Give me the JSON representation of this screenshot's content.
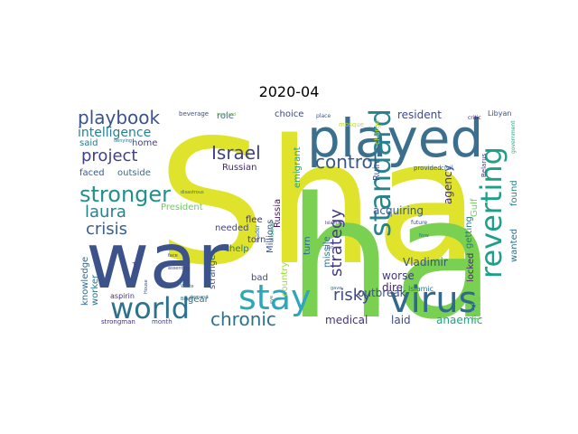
{
  "title": "2020-04",
  "words": [
    {
      "text": "Sha",
      "color": "#dfe32c"
    },
    {
      "text": "ha",
      "color": "#7ad151"
    },
    {
      "text": "war",
      "color": "#3b528b"
    },
    {
      "text": "played",
      "color": "#3b6f8e"
    },
    {
      "text": "stay",
      "color": "#2aa8b9"
    },
    {
      "text": "virus",
      "color": "#31688e"
    },
    {
      "text": "world",
      "color": "#2c728e"
    },
    {
      "text": "stronger",
      "color": "#21918c"
    },
    {
      "text": "standard",
      "color": "#25838e"
    },
    {
      "text": "reverting",
      "color": "#1f9e89"
    },
    {
      "text": "chronic",
      "color": "#2c728e"
    },
    {
      "text": "playbook",
      "color": "#3b528b"
    },
    {
      "text": "control",
      "color": "#38598c"
    },
    {
      "text": "Israel",
      "color": "#404387"
    },
    {
      "text": "project",
      "color": "#424086"
    },
    {
      "text": "laura",
      "color": "#26828e"
    },
    {
      "text": "crisis",
      "color": "#355f8d"
    },
    {
      "text": "strategy",
      "color": "#433e85"
    },
    {
      "text": "risky",
      "color": "#3e4a89"
    },
    {
      "text": "intelligence",
      "color": "#26828e"
    },
    {
      "text": "resident",
      "color": "#3e4a89"
    },
    {
      "text": "acquiring",
      "color": "#38598c"
    },
    {
      "text": "agency",
      "color": "#46337e"
    },
    {
      "text": "Vladimir",
      "color": "#3b528b"
    },
    {
      "text": "worse",
      "color": "#443983"
    },
    {
      "text": "dire",
      "color": "#482374"
    },
    {
      "text": "medical",
      "color": "#46327e"
    },
    {
      "text": "anaemic",
      "color": "#20a486"
    },
    {
      "text": "laid",
      "color": "#3e4989"
    },
    {
      "text": "Tibia",
      "color": "#6ccd5a"
    },
    {
      "text": "outbreak",
      "color": "#3b528b"
    },
    {
      "text": "Russian",
      "color": "#482576"
    },
    {
      "text": "role",
      "color": "#31688e"
    },
    {
      "text": "choice",
      "color": "#3e4989"
    },
    {
      "text": "home",
      "color": "#424086"
    },
    {
      "text": "said",
      "color": "#2a788e"
    },
    {
      "text": "faced",
      "color": "#38598c"
    },
    {
      "text": "outside",
      "color": "#2c728e"
    },
    {
      "text": "President",
      "color": "#6ccd5a"
    },
    {
      "text": "help",
      "color": "#2a788e"
    },
    {
      "text": "flee",
      "color": "#482878"
    },
    {
      "text": "needed",
      "color": "#414487"
    },
    {
      "text": "Russia",
      "color": "#470e61"
    },
    {
      "text": "Millions",
      "color": "#3b528b"
    },
    {
      "text": "turn",
      "color": "#31688e"
    },
    {
      "text": "country",
      "color": "#a0da39"
    },
    {
      "text": "missile",
      "color": "#2c728e"
    },
    {
      "text": "emigrant",
      "color": "#20a486"
    },
    {
      "text": "Ruin",
      "color": "#3b528b"
    },
    {
      "text": "Gulf",
      "color": "#75d054"
    },
    {
      "text": "getting",
      "color": "#2a788e"
    },
    {
      "text": "found",
      "color": "#26828e"
    },
    {
      "text": "locked",
      "color": "#482475"
    },
    {
      "text": "wanted",
      "color": "#2c728e"
    },
    {
      "text": "torn",
      "color": "#443983"
    },
    {
      "text": "bad",
      "color": "#3e4a89"
    },
    {
      "text": "gear",
      "color": "#2c728e"
    },
    {
      "text": "strange",
      "color": "#355f8d"
    },
    {
      "text": "knowledge",
      "color": "#31688e"
    },
    {
      "text": "worker",
      "color": "#2c728e"
    },
    {
      "text": "aspirin",
      "color": "#46307e"
    },
    {
      "text": "strongman",
      "color": "#46307e"
    },
    {
      "text": "month",
      "color": "#3e4989"
    },
    {
      "text": "Islamic",
      "color": "#2c728e"
    },
    {
      "text": "provided",
      "color": "#3b528b"
    },
    {
      "text": "civil",
      "color": "#31688e"
    },
    {
      "text": "beverage",
      "color": "#3b528b"
    },
    {
      "text": "imposed",
      "color": "#7ad151"
    },
    {
      "text": "critic",
      "color": "#482878"
    },
    {
      "text": "Libyan",
      "color": "#3b528b"
    },
    {
      "text": "government",
      "color": "#22a785"
    },
    {
      "text": "Belarus",
      "color": "#46327e"
    },
    {
      "text": "charge",
      "color": "#bddf26"
    },
    {
      "text": "place",
      "color": "#3b528b"
    },
    {
      "text": "mosque",
      "color": "#bddf26"
    },
    {
      "text": "Now",
      "color": "#2c728e"
    },
    {
      "text": "Brazil",
      "color": "#31688e"
    },
    {
      "text": "House",
      "color": "#3b528b"
    },
    {
      "text": "White",
      "color": "#31688e"
    },
    {
      "text": "assenting",
      "color": "#3e4a89"
    },
    {
      "text": "face",
      "color": "#3e4a89"
    },
    {
      "text": "demand",
      "color": "#2c728e"
    },
    {
      "text": "led",
      "color": "#3e4989"
    },
    {
      "text": "disastrous",
      "color": "#2c728e"
    },
    {
      "text": "denying",
      "color": "#2c728e"
    },
    {
      "text": "leader",
      "color": "#31688e"
    },
    {
      "text": "allowed",
      "color": "#1fa187"
    },
    {
      "text": "eye",
      "color": "#2a788e"
    },
    {
      "text": "future",
      "color": "#3e4989"
    },
    {
      "text": "gave",
      "color": "#2c728e"
    },
    {
      "text": "Islamist",
      "color": "#46327e"
    },
    {
      "text": "Iran",
      "color": "#3b528b"
    },
    {
      "text": "Italy",
      "color": "#3b528b"
    }
  ]
}
